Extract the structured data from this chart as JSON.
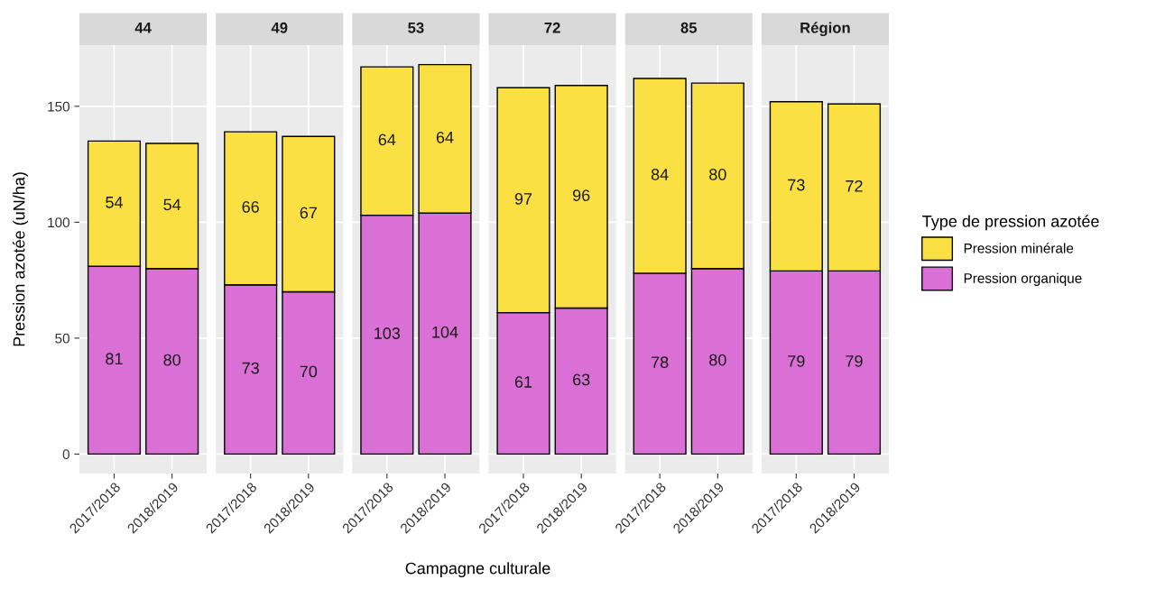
{
  "chart_data": [
    {
      "type": "bar",
      "title": "44",
      "categories": [
        "2017/2018",
        "2018/2019"
      ],
      "stacked": true,
      "data_labels": true,
      "grid": true,
      "ylim": [
        -8.4,
        176.4
      ],
      "yticks": [
        0,
        50,
        100,
        150
      ],
      "ylabel": "Pression azotée (uN/ha)",
      "series": [
        {
          "color": "#da70d6",
          "values": [
            81,
            80
          ]
        },
        {
          "color": "#fbe044",
          "values": [
            54,
            54
          ]
        }
      ]
    },
    {
      "type": "bar",
      "title": "49",
      "categories": [
        "2017/2018",
        "2018/2019"
      ],
      "stacked": true,
      "data_labels": true,
      "grid": true,
      "ylim": [
        -8.4,
        176.4
      ],
      "yticks": [
        0,
        50,
        100,
        150
      ],
      "tick_labels": "x",
      "series": [
        {
          "color": "#da70d6",
          "values": [
            73,
            70
          ]
        },
        {
          "color": "#fbe044",
          "values": [
            66,
            67
          ]
        }
      ]
    },
    {
      "type": "bar",
      "title": "53",
      "categories": [
        "2017/2018",
        "2018/2019"
      ],
      "stacked": true,
      "data_labels": true,
      "grid": true,
      "ylim": [
        -8.4,
        176.4
      ],
      "yticks": [
        0,
        50,
        100,
        150
      ],
      "tick_labels": "x",
      "xlabel": "Campagne culturale",
      "series": [
        {
          "color": "#da70d6",
          "values": [
            103,
            104
          ]
        },
        {
          "color": "#fbe044",
          "values": [
            64,
            64
          ]
        }
      ]
    },
    {
      "type": "bar",
      "title": "72",
      "categories": [
        "2017/2018",
        "2018/2019"
      ],
      "stacked": true,
      "data_labels": true,
      "grid": true,
      "ylim": [
        -8.4,
        176.4
      ],
      "yticks": [
        0,
        50,
        100,
        150
      ],
      "tick_labels": "x",
      "series": [
        {
          "color": "#da70d6",
          "values": [
            61,
            63
          ]
        },
        {
          "color": "#fbe044",
          "values": [
            97,
            96
          ]
        }
      ]
    },
    {
      "type": "bar",
      "title": "85",
      "categories": [
        "2017/2018",
        "2018/2019"
      ],
      "stacked": true,
      "data_labels": true,
      "grid": true,
      "ylim": [
        -8.4,
        176.4
      ],
      "yticks": [
        0,
        50,
        100,
        150
      ],
      "tick_labels": "x",
      "series": [
        {
          "color": "#da70d6",
          "values": [
            78,
            80
          ]
        },
        {
          "color": "#fbe044",
          "values": [
            84,
            80
          ]
        }
      ]
    },
    {
      "type": "bar",
      "title": "Région",
      "categories": [
        "2017/2018",
        "2018/2019"
      ],
      "stacked": true,
      "data_labels": true,
      "grid": true,
      "legend": "right",
      "legend_title": "Type de pression azotée",
      "ylim": [
        -8.4,
        176.4
      ],
      "yticks": [
        0,
        50,
        100,
        150
      ],
      "tick_labels": "x",
      "series": [
        {
          "name": "Pression organique",
          "color": "#da70d6",
          "values": [
            79,
            79
          ]
        },
        {
          "name": "Pression minérale",
          "color": "#fbe044",
          "values": [
            73,
            72
          ]
        }
      ]
    }
  ]
}
